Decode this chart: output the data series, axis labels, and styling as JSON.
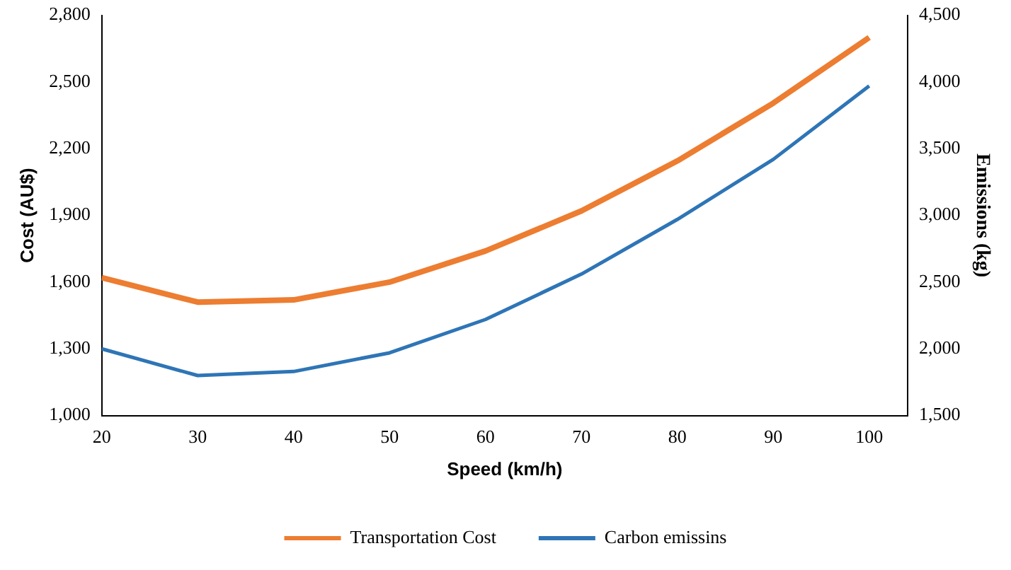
{
  "chart_data": {
    "type": "line",
    "xlabel": "Speed (km/h)",
    "ylabel": "Cost (AU$)",
    "y2label": "Emissions (kg)",
    "x": [
      20,
      30,
      40,
      50,
      60,
      70,
      80,
      90,
      100
    ],
    "xlim": [
      20,
      104
    ],
    "xticks": [
      20,
      30,
      40,
      50,
      60,
      70,
      80,
      90,
      100
    ],
    "ylim": [
      1000,
      2800
    ],
    "yticks": [
      {
        "value": 1000,
        "label": "1,000"
      },
      {
        "value": 1300,
        "label": "1,300"
      },
      {
        "value": 1600,
        "label": "1,600"
      },
      {
        "value": 1900,
        "label": "1,900"
      },
      {
        "value": 2200,
        "label": "2,200"
      },
      {
        "value": 2500,
        "label": "2,500"
      },
      {
        "value": 2800,
        "label": "2,800"
      }
    ],
    "y2lim": [
      1500,
      4500
    ],
    "y2ticks": [
      {
        "value": 1500,
        "label": "1,500"
      },
      {
        "value": 2000,
        "label": "2,000"
      },
      {
        "value": 2500,
        "label": "2,500"
      },
      {
        "value": 3000,
        "label": "3,000"
      },
      {
        "value": 3500,
        "label": "3,500"
      },
      {
        "value": 4000,
        "label": "4,000"
      },
      {
        "value": 4500,
        "label": "4,500"
      }
    ],
    "series": [
      {
        "name": "Transportation Cost",
        "color": "#ed7d31",
        "values": [
          1620,
          1510,
          1520,
          1600,
          1740,
          1920,
          2145,
          2405,
          2700
        ]
      },
      {
        "name": "Carbon emissins",
        "color": "#2e75b6",
        "axis": "y2",
        "values": [
          2000,
          1800,
          1830,
          1970,
          2220,
          2560,
          2970,
          3420,
          3970
        ]
      }
    ],
    "grid": false,
    "legend": "bottom",
    "marker": "none",
    "line_style": "solid"
  }
}
